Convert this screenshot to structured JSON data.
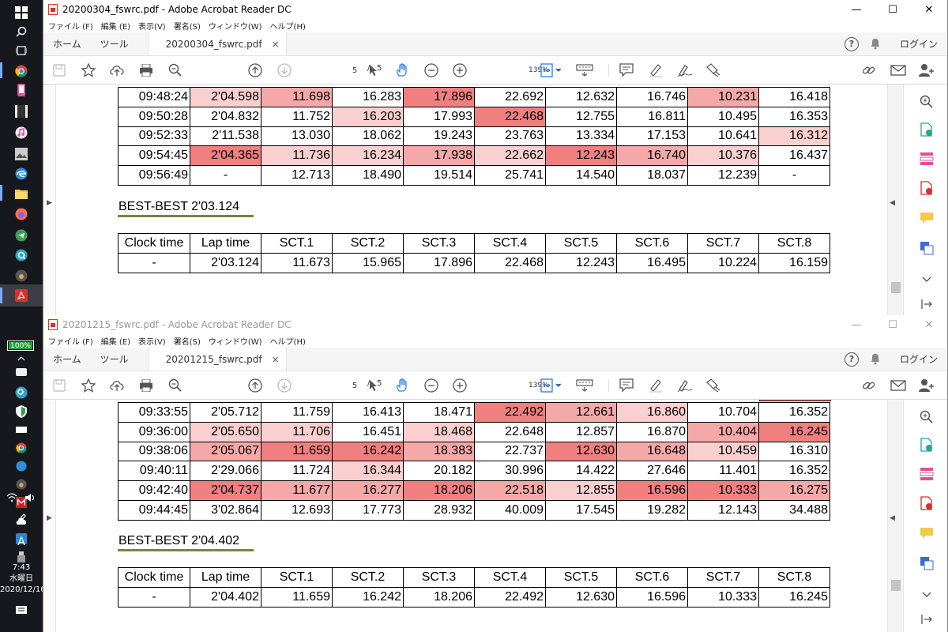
{
  "taskbar": {
    "clock_time": "7:43",
    "clock_day": "水曜日",
    "clock_date": "2020/12/16",
    "battery": "100%",
    "battery_level": 1.0
  },
  "menus": [
    "ファイル (F)",
    "編集 (E)",
    "表示(V)",
    "署名(S)",
    "ウィンドウ(W)",
    "ヘルプ(H)"
  ],
  "tabs": {
    "home": "ホーム",
    "tools": "ツール",
    "login": "ログイン",
    "close": "×"
  },
  "window1": {
    "title": "20200304_fswrc.pdf - Adobe Acrobat Reader DC",
    "doc_tab": "20200304_fswrc.pdf",
    "page": "5",
    "page_sep": "/",
    "pages": "5",
    "zoom": "139%",
    "lap_rows": [
      {
        "cells": [
          "09:48:24",
          "2'04.598",
          "11.698",
          "16.283",
          "17.896",
          "22.692",
          "12.632",
          "16.746",
          "10.231",
          "16.418"
        ],
        "heat": [
          0,
          3,
          2,
          0,
          1,
          0,
          0,
          0,
          2,
          0
        ]
      },
      {
        "cells": [
          "09:50:28",
          "2'04.832",
          "11.752",
          "16.203",
          "17.993",
          "22.468",
          "12.755",
          "16.811",
          "10.495",
          "16.353"
        ],
        "heat": [
          0,
          0,
          0,
          3,
          0,
          1,
          0,
          0,
          0,
          0
        ]
      },
      {
        "cells": [
          "09:52:33",
          "2'11.538",
          "13.030",
          "18.062",
          "19.243",
          "23.763",
          "13.334",
          "17.153",
          "10.641",
          "16.312"
        ],
        "heat": [
          0,
          0,
          0,
          0,
          0,
          0,
          0,
          0,
          0,
          3
        ]
      },
      {
        "cells": [
          "09:54:45",
          "2'04.365",
          "11.736",
          "16.234",
          "17.938",
          "22.662",
          "12.243",
          "16.740",
          "10.376",
          "16.437"
        ],
        "heat": [
          0,
          1,
          3,
          3,
          2,
          3,
          1,
          2,
          3,
          0
        ]
      },
      {
        "cells": [
          "09:56:49",
          "-",
          "12.713",
          "18.490",
          "19.514",
          "25.741",
          "14.540",
          "18.037",
          "12.239",
          "-"
        ],
        "heat": [
          0,
          0,
          0,
          0,
          0,
          0,
          0,
          0,
          0,
          0
        ]
      }
    ],
    "best_title": "BEST-BEST 2'03.124",
    "best_headers": [
      "Clock time",
      "Lap time",
      "SCT.1",
      "SCT.2",
      "SCT.3",
      "SCT.4",
      "SCT.5",
      "SCT.6",
      "SCT.7",
      "SCT.8"
    ],
    "best_row": [
      "-",
      "2'03.124",
      "11.673",
      "15.965",
      "17.896",
      "22.468",
      "12.243",
      "16.495",
      "10.224",
      "16.159"
    ]
  },
  "window2": {
    "title": "20201215_fswrc.pdf - Adobe Acrobat Reader DC",
    "doc_tab": "20201215_fswrc.pdf",
    "page": "5",
    "page_sep": "/",
    "pages": "5",
    "zoom": "139%",
    "lap_rows": [
      {
        "cells": [
          "09:33:55",
          "2'05.712",
          "11.759",
          "16.413",
          "18.471",
          "22.492",
          "12.661",
          "16.860",
          "10.704",
          "16.352"
        ],
        "heat": [
          0,
          0,
          0,
          0,
          0,
          1,
          2,
          3,
          0,
          0
        ]
      },
      {
        "cells": [
          "09:36:00",
          "2'05.650",
          "11.706",
          "16.451",
          "18.468",
          "22.648",
          "12.857",
          "16.870",
          "10.404",
          "16.245"
        ],
        "heat": [
          0,
          3,
          3,
          0,
          3,
          0,
          0,
          0,
          2,
          1
        ]
      },
      {
        "cells": [
          "09:38:06",
          "2'05.067",
          "11.659",
          "16.242",
          "18.383",
          "22.737",
          "12.630",
          "16.648",
          "10.459",
          "16.310"
        ],
        "heat": [
          0,
          2,
          1,
          1,
          2,
          0,
          1,
          2,
          3,
          0
        ]
      },
      {
        "cells": [
          "09:40:11",
          "2'29.066",
          "11.724",
          "16.344",
          "20.182",
          "30.996",
          "14.422",
          "27.646",
          "11.401",
          "16.352"
        ],
        "heat": [
          0,
          0,
          0,
          3,
          0,
          0,
          0,
          0,
          0,
          0
        ]
      },
      {
        "cells": [
          "09:42:40",
          "2'04.737",
          "11.677",
          "16.277",
          "18.206",
          "22.518",
          "12.855",
          "16.596",
          "10.333",
          "16.275"
        ],
        "heat": [
          0,
          1,
          2,
          2,
          1,
          2,
          3,
          1,
          1,
          2
        ]
      },
      {
        "cells": [
          "09:44:45",
          "3'02.864",
          "12.693",
          "17.773",
          "28.932",
          "40.009",
          "17.545",
          "19.282",
          "12.143",
          "34.488"
        ],
        "heat": [
          0,
          0,
          0,
          0,
          0,
          0,
          0,
          0,
          0,
          0
        ]
      }
    ],
    "best_title": "BEST-BEST 2'04.402",
    "best_headers": [
      "Clock time",
      "Lap time",
      "SCT.1",
      "SCT.2",
      "SCT.3",
      "SCT.4",
      "SCT.5",
      "SCT.6",
      "SCT.7",
      "SCT.8"
    ],
    "best_row": [
      "-",
      "2'04.402",
      "11.659",
      "16.242",
      "18.206",
      "22.492",
      "12.630",
      "16.596",
      "10.333",
      "16.245"
    ]
  },
  "colors": {
    "heat1": "#f08080",
    "heat2": "#f5a8a8",
    "heat3": "#f9cfcf",
    "underline": "#6e8b3d",
    "battery": "#24a13f"
  }
}
